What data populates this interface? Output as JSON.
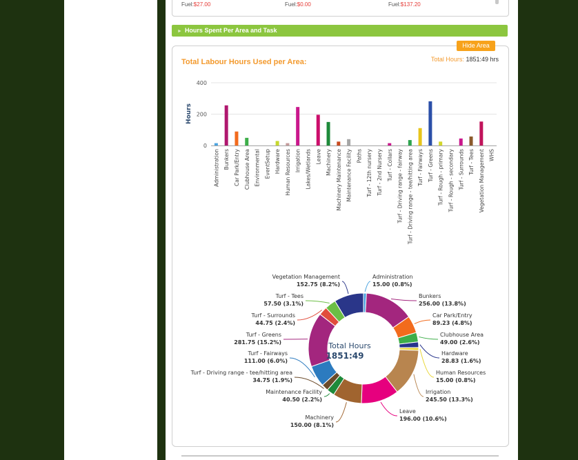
{
  "top_box": {
    "fuel_entries": [
      {
        "label": "Fuel:",
        "value": "$27.00"
      },
      {
        "label": "Fuel:",
        "value": "$0.00"
      },
      {
        "label": "Fuel:",
        "value": "$137.20"
      }
    ]
  },
  "section": {
    "title": "Hours Spent Per Area and Task"
  },
  "hide_button": "Hide Area",
  "chart_header": {
    "title": "Total Labour Hours Used per Area:",
    "total_label": "Total Hours:",
    "total_value": "1851:49 hrs"
  },
  "colors": {
    "accent_green": "#8cc63f",
    "accent_orange": "#f39a2e",
    "background": "#1e3210"
  },
  "chart_data": [
    {
      "type": "bar",
      "ylabel": "Hours",
      "ylim": [
        0,
        400
      ],
      "yticks": [
        0,
        200,
        400
      ],
      "grid": true,
      "categories": [
        "Administration",
        "Bunkers",
        "Car Park/Entry",
        "Clubhouse Area",
        "Environmental",
        "EventSetup",
        "Hardware",
        "Human Resources",
        "Irrigation",
        "Lakes/Wetlands",
        "Leave",
        "Machinery",
        "Machinery Maintenance",
        "Maintenance Facility",
        "Paths",
        "Turf - 12th nursery",
        "Turf - 2nd Nursery",
        "Turf - Collars",
        "Turf - Driving range - fairway",
        "Turf - Driving range - tee/hitting area",
        "Turf - Fairways",
        "Turf - Greens",
        "Turf - Rough - primary",
        "Turf - Rough - secondary",
        "Turf - Surrounds",
        "Turf - Tees",
        "Vegetation Management",
        "WHS"
      ],
      "values": [
        15,
        256,
        89.23,
        49,
        0,
        0,
        28.83,
        15,
        245.5,
        0,
        196,
        150,
        25,
        40.5,
        0,
        0,
        0,
        15,
        0,
        34.75,
        111,
        281.75,
        25,
        0,
        44.75,
        57.5,
        152.75,
        0
      ],
      "colors": [
        "#4aa3df",
        "#b0176f",
        "#f26b1d",
        "#3dae49",
        "#999999",
        "#999999",
        "#c6d82e",
        "#c49a9a",
        "#c9178c",
        "#888888",
        "#cc0e6b",
        "#1e8a3a",
        "#c84b1f",
        "#a6a6a6",
        "#888888",
        "#888888",
        "#888888",
        "#c9178c",
        "#888888",
        "#2da44e",
        "#e8c51b",
        "#2b4fa8",
        "#d2d62a",
        "#888888",
        "#c9178c",
        "#8b5a2b",
        "#c0145b",
        "#888888"
      ]
    },
    {
      "type": "pie",
      "center_label": "Total Hours",
      "center_value": "1851:49",
      "slices": [
        {
          "label": "Administration",
          "value": 15.0,
          "value_text": "15.00 (0.8%)",
          "color": "#4aa3df"
        },
        {
          "label": "Bunkers",
          "value": 256.0,
          "value_text": "256.00 (13.8%)",
          "color": "#a3267e"
        },
        {
          "label": "Car Park/Entry",
          "value": 89.23,
          "value_text": "89.23 (4.8%)",
          "color": "#f26b1d"
        },
        {
          "label": "Clubhouse Area",
          "value": 49.0,
          "value_text": "49.00 (2.6%)",
          "color": "#3dae49"
        },
        {
          "label": "Hardware",
          "value": 28.83,
          "value_text": "28.83 (1.6%)",
          "color": "#27348b"
        },
        {
          "label": "Human Resources",
          "value": 15.0,
          "value_text": "15.00 (0.8%)",
          "color": "#e9d636"
        },
        {
          "label": "Irrigation",
          "value": 245.5,
          "value_text": "245.50 (13.3%)",
          "color": "#b8854f"
        },
        {
          "label": "Leave",
          "value": 196.0,
          "value_text": "196.00 (10.6%)",
          "color": "#e6007e"
        },
        {
          "label": "Machinery",
          "value": 150.0,
          "value_text": "150.00 (8.1%)",
          "color": "#a0642f"
        },
        {
          "label": "Maintenance Facility",
          "value": 40.5,
          "value_text": "40.50 (2.2%)",
          "color": "#1e8a3a"
        },
        {
          "label": "Turf - Driving range - tee/hitting area",
          "value": 34.75,
          "value_text": "34.75 (1.9%)",
          "color": "#6b4b2a"
        },
        {
          "label": "Turf - Fairways",
          "value": 111.0,
          "value_text": "111.00 (6.0%)",
          "color": "#2c7bbf"
        },
        {
          "label": "Turf - Greens",
          "value": 281.75,
          "value_text": "281.75 (15.2%)",
          "color": "#a3267e"
        },
        {
          "label": "Turf - Surrounds",
          "value": 44.75,
          "value_text": "44.75 (2.4%)",
          "color": "#e14d3c"
        },
        {
          "label": "Turf - Tees",
          "value": 57.5,
          "value_text": "57.50 (3.1%)",
          "color": "#6cbe45"
        },
        {
          "label": "Vegetation Management",
          "value": 152.75,
          "value_text": "152.75 (8.2%)",
          "color": "#2a3689"
        }
      ]
    }
  ]
}
